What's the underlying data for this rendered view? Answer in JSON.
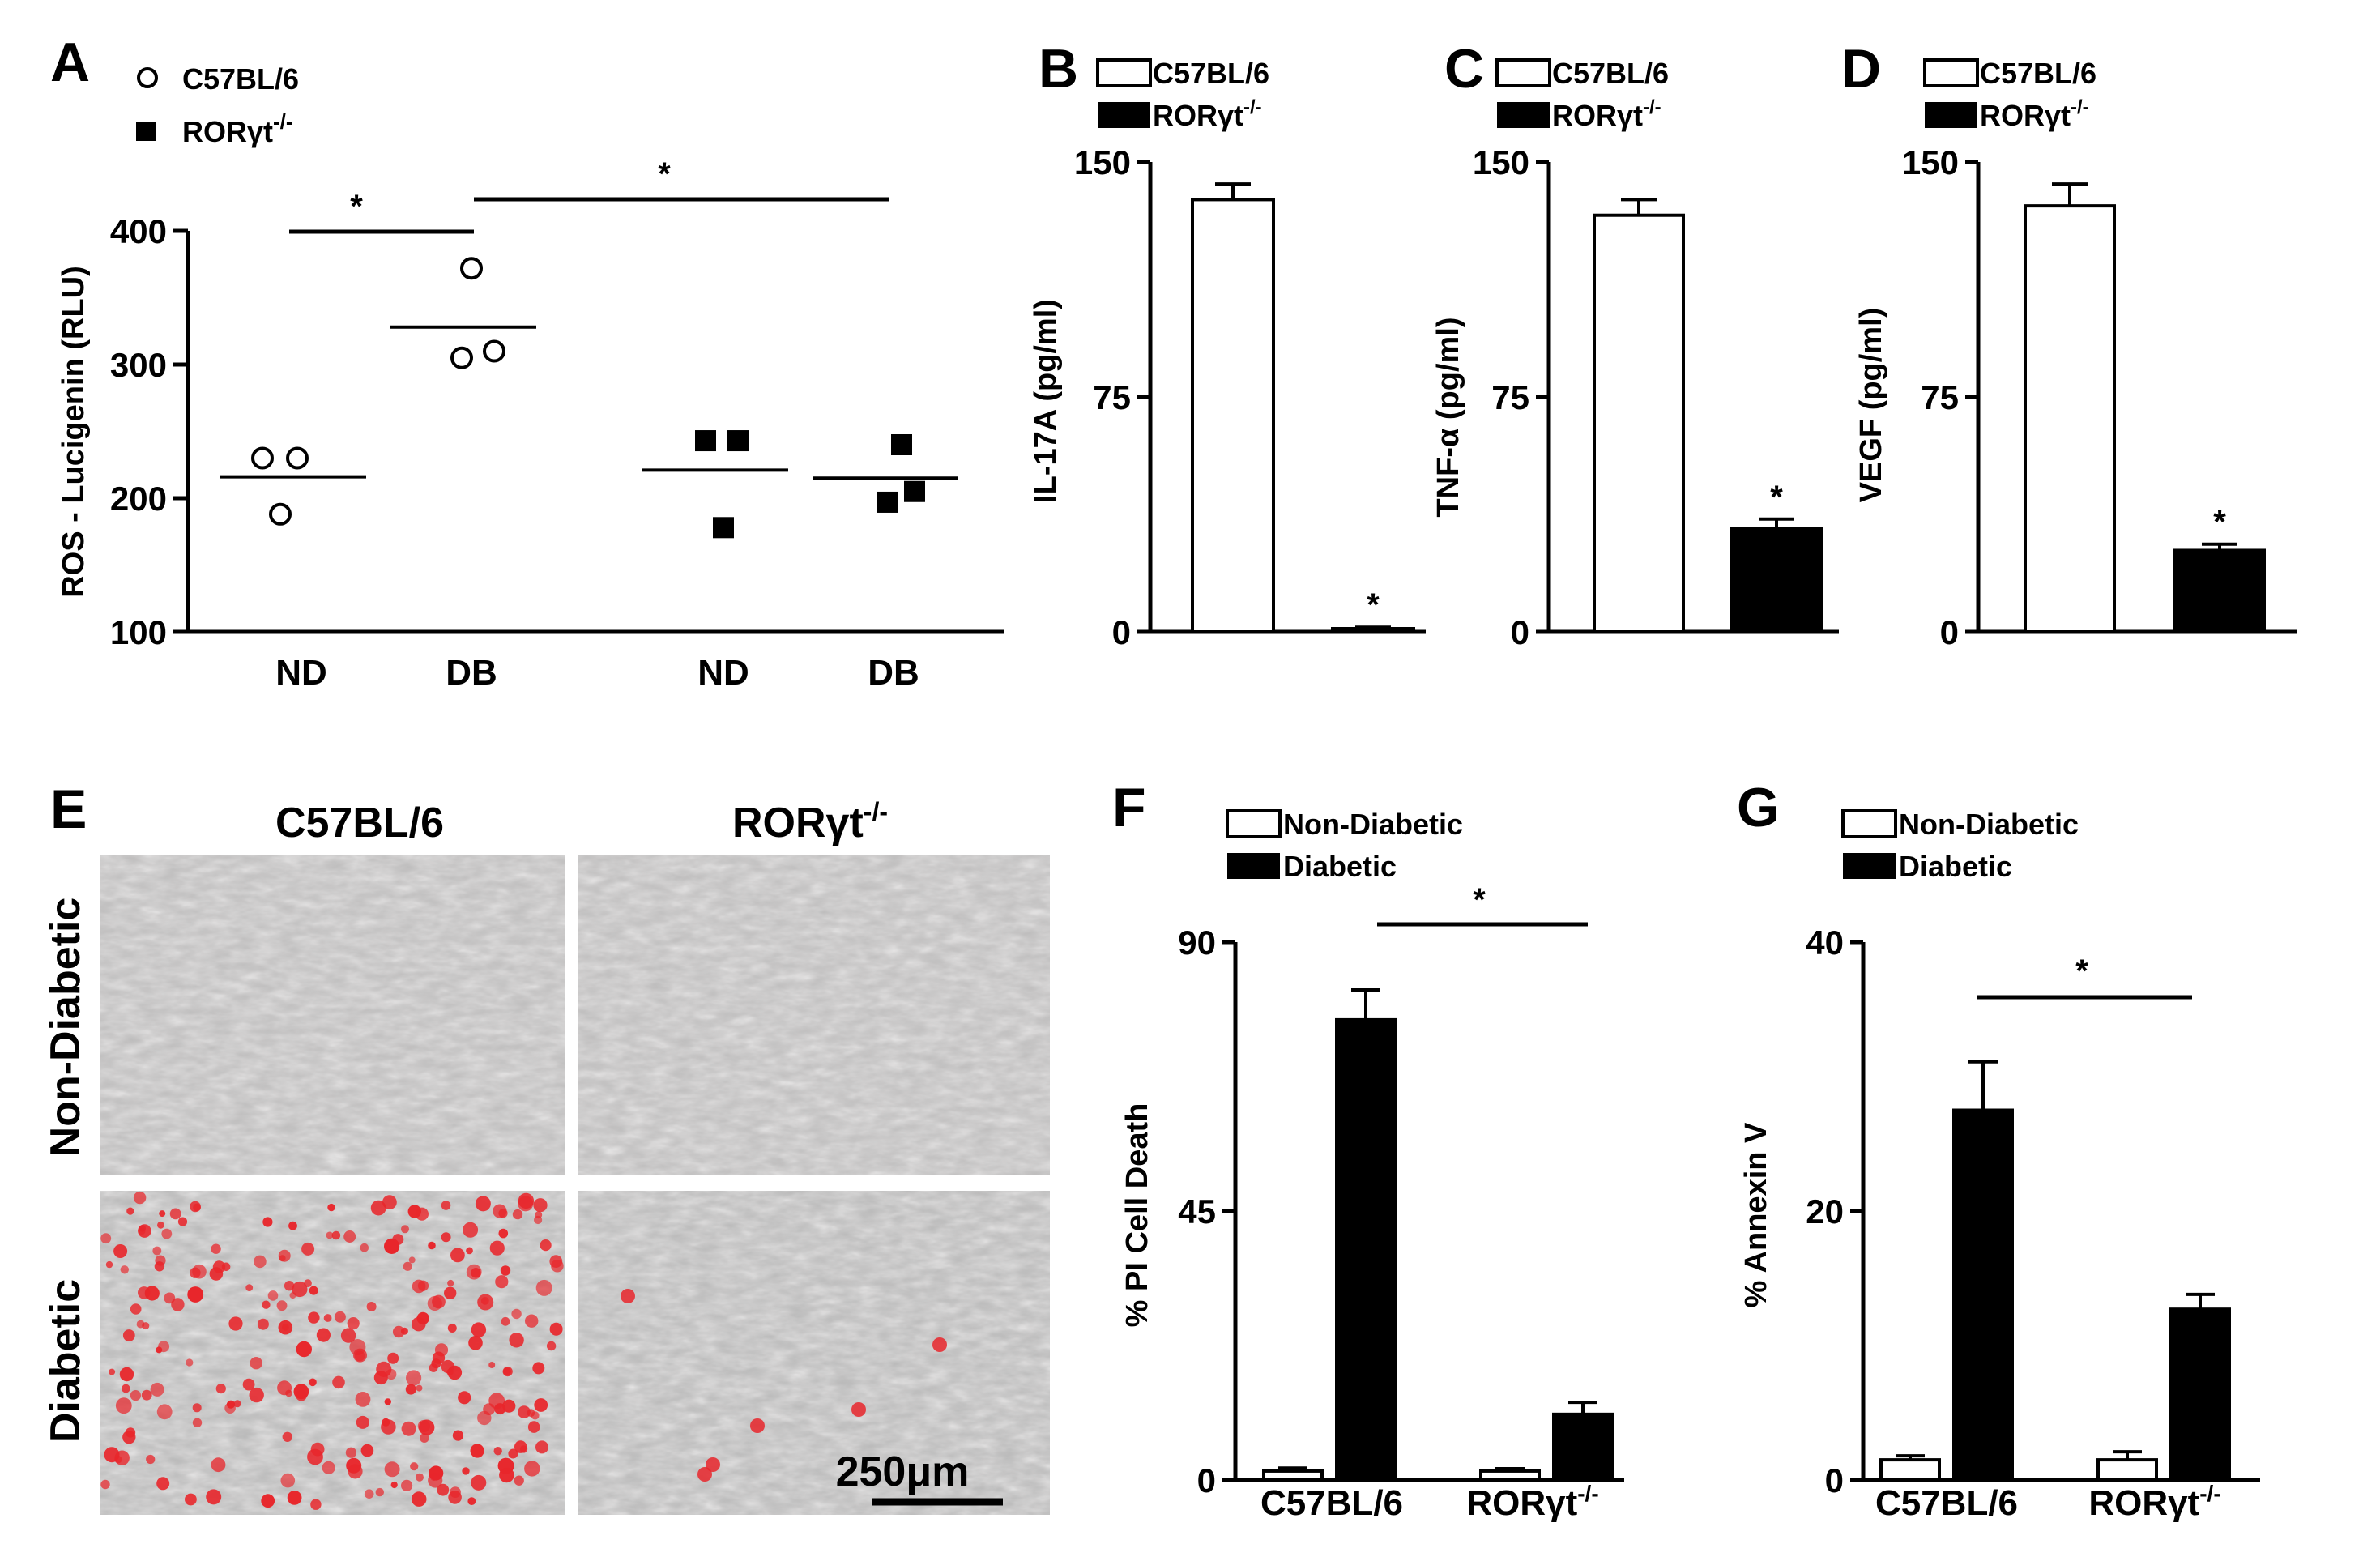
{
  "panel_labels": {
    "A": "A",
    "B": "B",
    "C": "C",
    "D": "D",
    "E": "E",
    "F": "F",
    "G": "G"
  },
  "strains": {
    "wt": "C57BL/6",
    "ko": "RORγt",
    "ko_sup": "-/-"
  },
  "star": "*",
  "panel_e": {
    "row_labels": [
      "Non-Diabetic",
      "Diabetic"
    ],
    "col_labels": [
      "C57BL/6",
      "RORγt"
    ],
    "col_sup": "-/-",
    "scale_bar": "250μm",
    "colors": {
      "dead_cells": "#e8262b",
      "background": "#bdbcbc"
    }
  },
  "chart_data": [
    {
      "panel": "A",
      "type": "scatter",
      "ylabel": "ROS - Lucigenin (RLU)",
      "ylim": [
        100,
        400
      ],
      "yticks": [
        100,
        200,
        300,
        400
      ],
      "categories": [
        "ND",
        "DB",
        "ND",
        "DB"
      ],
      "legend": [
        "C57BL/6",
        "RORγt-/-"
      ],
      "series": [
        {
          "name": "C57BL/6",
          "marker": "open-circle",
          "groups": [
            {
              "category": "ND",
              "points": [
                230,
                230,
                188
              ],
              "mean": 216
            },
            {
              "category": "DB",
              "points": [
                372,
                305,
                310
              ],
              "mean": 328
            }
          ]
        },
        {
          "name": "RORγt-/-",
          "marker": "filled-square",
          "groups": [
            {
              "category": "ND",
              "points": [
                243,
                243,
                178
              ],
              "mean": 221
            },
            {
              "category": "DB",
              "points": [
                240,
                197,
                205
              ],
              "mean": 215
            }
          ]
        }
      ],
      "significance": [
        "*",
        "*"
      ]
    },
    {
      "panel": "B",
      "type": "bar",
      "ylabel": "IL-17A (pg/ml)",
      "ylim": [
        0,
        150
      ],
      "yticks": [
        0,
        75,
        150
      ],
      "series": [
        {
          "name": "C57BL/6",
          "value": 138,
          "error": 5
        },
        {
          "name": "RORγt-/-",
          "value": 1,
          "error": 0.5
        }
      ],
      "significance": "*"
    },
    {
      "panel": "C",
      "type": "bar",
      "ylabel": "TNF-α (pg/ml)",
      "ylim": [
        0,
        150
      ],
      "yticks": [
        0,
        75,
        150
      ],
      "series": [
        {
          "name": "C57BL/6",
          "value": 133,
          "error": 5
        },
        {
          "name": "RORγt-/-",
          "value": 33,
          "error": 3
        }
      ],
      "significance": "*"
    },
    {
      "panel": "D",
      "type": "bar",
      "ylabel": "VEGF (pg/ml)",
      "ylim": [
        0,
        150
      ],
      "yticks": [
        0,
        75,
        150
      ],
      "series": [
        {
          "name": "C57BL/6",
          "value": 136,
          "error": 7
        },
        {
          "name": "RORγt-/-",
          "value": 26,
          "error": 2
        }
      ],
      "significance": "*"
    },
    {
      "panel": "F",
      "type": "bar",
      "ylabel": "% PI Cell Death",
      "ylim": [
        0,
        90
      ],
      "yticks": [
        0,
        45,
        90
      ],
      "categories": [
        "C57BL/6",
        "RORγt-/-"
      ],
      "series": [
        {
          "name": "Non-Diabetic",
          "values": [
            1.5,
            1.5
          ],
          "errors": [
            0.5,
            0.4
          ]
        },
        {
          "name": "Diabetic",
          "values": [
            77,
            11
          ],
          "errors": [
            5,
            2
          ]
        }
      ],
      "significance": "*"
    },
    {
      "panel": "G",
      "type": "bar",
      "ylabel": "% Annexin V",
      "ylim": [
        0,
        40
      ],
      "yticks": [
        0,
        20,
        40
      ],
      "categories": [
        "C57BL/6",
        "RORγt-/-"
      ],
      "series": [
        {
          "name": "Non-Diabetic",
          "values": [
            1.5,
            1.5
          ],
          "errors": [
            0.3,
            0.6
          ]
        },
        {
          "name": "Diabetic",
          "values": [
            27.5,
            12.7
          ],
          "errors": [
            3.6,
            1.1
          ]
        }
      ],
      "significance": "*"
    }
  ]
}
